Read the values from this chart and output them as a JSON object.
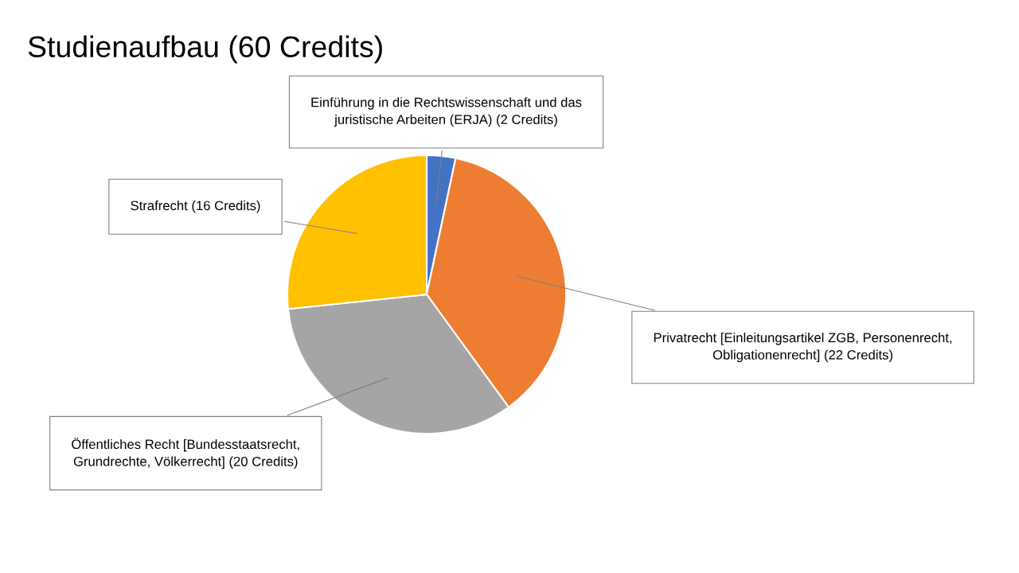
{
  "chart_data": {
    "type": "pie",
    "title": "Studienaufbau (60 Credits)",
    "categories": [
      "Einführung in die Rechtswissenschaft und das\njuristische Arbeiten (ERJA) (2 Credits)",
      "Privatrecht [Einleitungsartikel ZGB, Personenrecht,\nObligationenrecht] (22 Credits)",
      "Öffentliches Recht [Bundesstaatsrecht,\nGrundrechte, Völkerrecht] (20 Credits)",
      "Strafrecht (16 Credits)"
    ],
    "values": [
      2,
      22,
      20,
      16
    ],
    "colors": [
      "#4472c4",
      "#ed7d31",
      "#a5a5a5",
      "#ffc000"
    ],
    "legend": false
  }
}
